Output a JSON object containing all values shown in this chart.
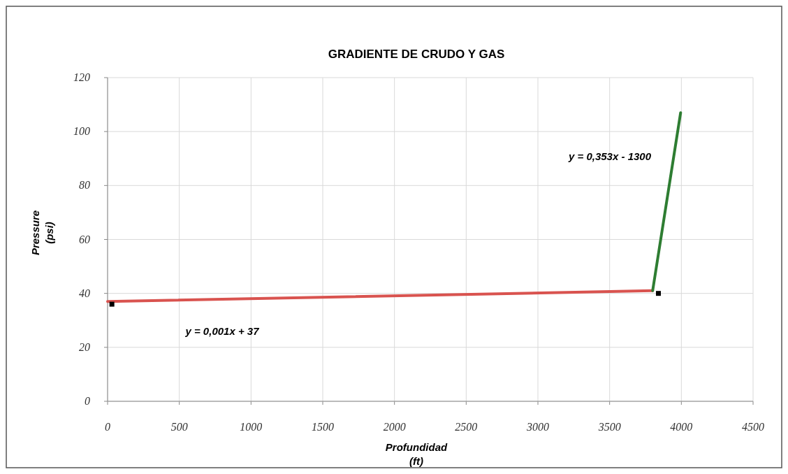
{
  "chart_data": {
    "type": "line",
    "title": "GRADIENTE DE CRUDO Y GAS",
    "xlabel": "Profundidad\n(ft)",
    "ylabel": "Pressure\n(psi)",
    "xlim": [
      0,
      4500
    ],
    "xticks": [
      0,
      500,
      1000,
      1500,
      2000,
      2500,
      3000,
      3500,
      4000,
      4500
    ],
    "ylim": [
      0,
      120
    ],
    "yticks": [
      0,
      20,
      40,
      60,
      80,
      100,
      120
    ],
    "grid": true,
    "series": [
      {
        "color": "#d9534f",
        "x": [
          0,
          3800
        ],
        "values": [
          37,
          41
        ]
      },
      {
        "color": "#2e7d32",
        "x": [
          3800,
          3995
        ],
        "values": [
          41,
          107
        ]
      },
      {
        "type": "scatter",
        "color": "#000000",
        "marker": "square",
        "x": [
          30,
          3840
        ],
        "values": [
          36,
          40
        ]
      }
    ],
    "annotations": [
      "y = 0,001x + 37",
      "y = 0,353x - 1300"
    ]
  }
}
